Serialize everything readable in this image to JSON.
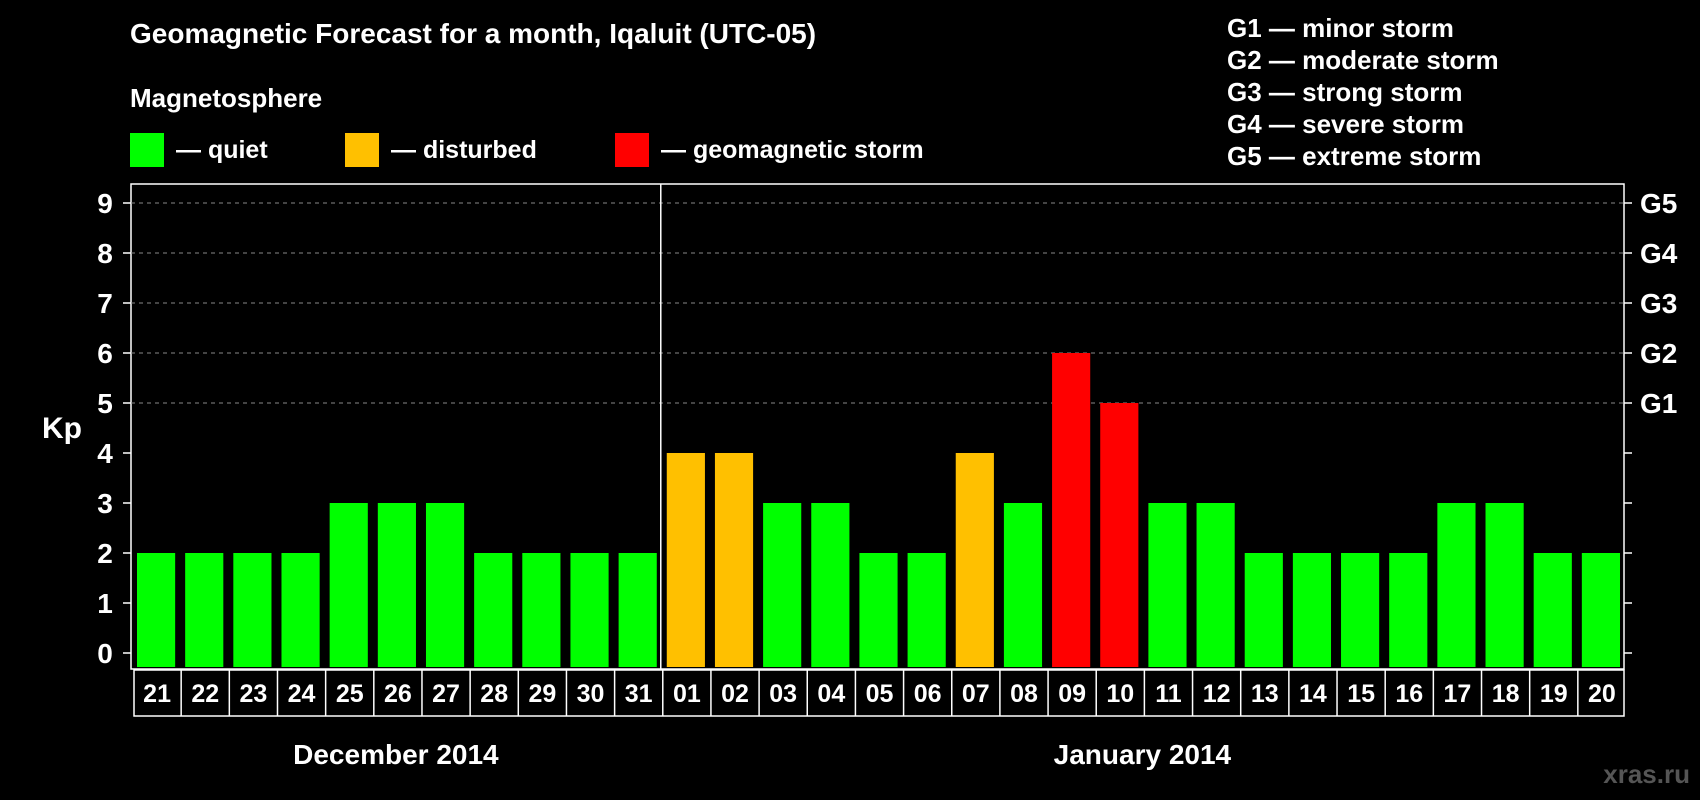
{
  "title": "Geomagnetic Forecast for a month, Iqaluit (UTC-05)",
  "subtitle": "Magnetosphere",
  "legend": [
    {
      "label": "— quiet",
      "color": "#00ff00"
    },
    {
      "label": "— disturbed",
      "color": "#ffc000"
    },
    {
      "label": "— geomagnetic storm",
      "color": "#ff0000"
    }
  ],
  "storm_levels": [
    "G1 — minor storm",
    "G2 — moderate storm",
    "G3 — strong storm",
    "G4 — severe storm",
    "G5 — extreme storm"
  ],
  "watermark": "xras.ru",
  "chart_data": {
    "type": "bar",
    "ylabel": "Kp",
    "ylim": [
      0,
      9
    ],
    "yticks": [
      0,
      1,
      2,
      3,
      4,
      5,
      6,
      7,
      8,
      9
    ],
    "right_axis_labels": [
      {
        "value": 5,
        "label": "G1"
      },
      {
        "value": 6,
        "label": "G2"
      },
      {
        "value": 7,
        "label": "G3"
      },
      {
        "value": 8,
        "label": "G4"
      },
      {
        "value": 9,
        "label": "G5"
      }
    ],
    "grid": true,
    "categories": [
      "21",
      "22",
      "23",
      "24",
      "25",
      "26",
      "27",
      "28",
      "29",
      "30",
      "31",
      "01",
      "02",
      "03",
      "04",
      "05",
      "06",
      "07",
      "08",
      "09",
      "10",
      "11",
      "12",
      "13",
      "14",
      "15",
      "16",
      "17",
      "18",
      "19",
      "20"
    ],
    "values": [
      2,
      2,
      2,
      2,
      3,
      3,
      3,
      2,
      2,
      2,
      2,
      4,
      4,
      3,
      3,
      2,
      2,
      4,
      3,
      6,
      5,
      3,
      3,
      2,
      2,
      2,
      2,
      3,
      3,
      2,
      2
    ],
    "status": [
      "quiet",
      "quiet",
      "quiet",
      "quiet",
      "quiet",
      "quiet",
      "quiet",
      "quiet",
      "quiet",
      "quiet",
      "quiet",
      "disturbed",
      "disturbed",
      "quiet",
      "quiet",
      "quiet",
      "quiet",
      "disturbed",
      "quiet",
      "storm",
      "storm",
      "quiet",
      "quiet",
      "quiet",
      "quiet",
      "quiet",
      "quiet",
      "quiet",
      "quiet",
      "quiet",
      "quiet"
    ],
    "status_colors": {
      "quiet": "#00ff00",
      "disturbed": "#ffc000",
      "storm": "#ff0000"
    },
    "month_groups": [
      {
        "label": "December 2014",
        "start": 0,
        "count": 11
      },
      {
        "label": "January 2014",
        "start": 11,
        "count": 20
      }
    ]
  }
}
